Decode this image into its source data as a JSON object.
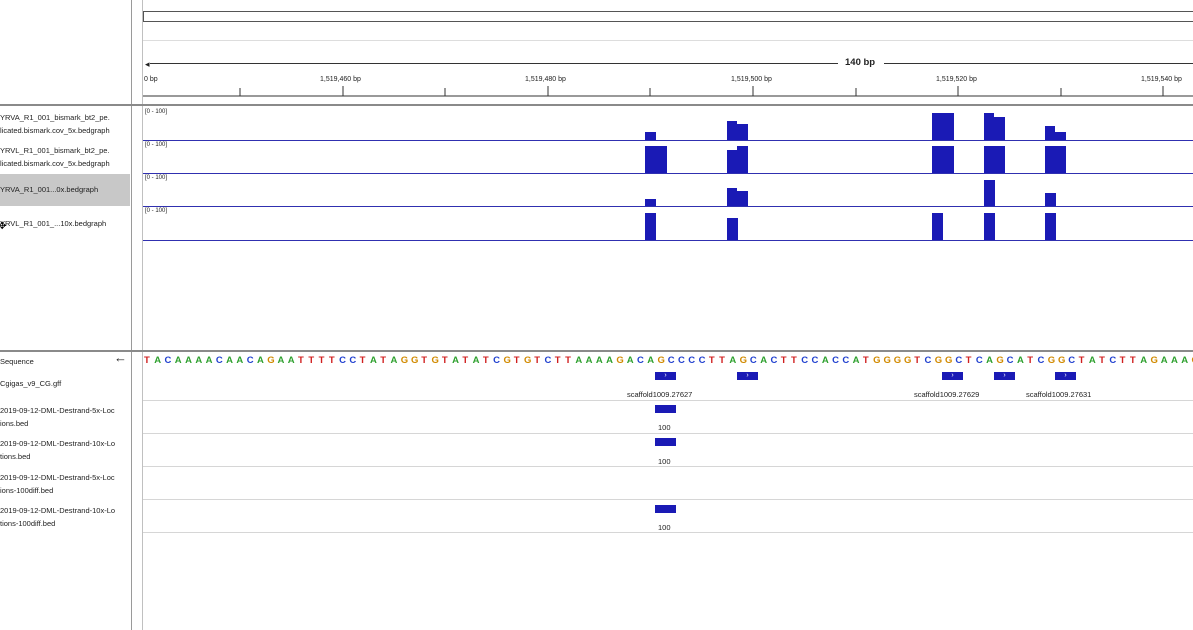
{
  "ruler": {
    "span": "140 bp",
    "ticks": [
      "0 bp",
      "1,519,460 bp",
      "1,519,480 bp",
      "1,519,500 bp",
      "1,519,520 bp",
      "1,519,540 bp"
    ]
  },
  "data_tracks": [
    {
      "name_line1": "YRVA_R1_001_bismark_bt2_pe.",
      "name_line2": "licated.bismark.cov_5x.bedgraph",
      "range": "[0 - 100]",
      "selected": false
    },
    {
      "name_line1": "YRVL_R1_001_bismark_bt2_pe.",
      "name_line2": "licated.bismark.cov_5x.bedgraph",
      "range": "[0 - 100]",
      "selected": false
    },
    {
      "name_line1": "YRVA_R1_001...0x.bedgraph",
      "name_line2": "",
      "range": "[0 - 100]",
      "selected": true
    },
    {
      "name_line1": "YRVL_R1_001_...10x.bedgraph",
      "name_line2": "",
      "range": "[0 - 100]",
      "selected": false
    }
  ],
  "bottom_tracks": {
    "sequence_label": "Sequence",
    "sequence_arrow": "←",
    "gff_label": "Cgigas_v9_CG.gff",
    "bed1_line1": "2019-09-12-DML-Destrand-5x-Loc",
    "bed1_line2": "ions.bed",
    "bed2_line1": "2019-09-12-DML-Destrand-10x-Lo",
    "bed2_line2": "tions.bed",
    "bed3_line1": "2019-09-12-DML-Destrand-5x-Loc",
    "bed3_line2": "ions-100diff.bed",
    "bed4_line1": "2019-09-12-DML-Destrand-10x-Lo",
    "bed4_line2": "tions-100diff.bed"
  },
  "sequence": "TACAAAACAACAGAATTTTCCTATAGGTGTATATCGTGTCTTAAAAGACAGCCCCTTAGCACTTCCACCATGGGGTCGGCTCAGCATCGGCTATCTTAGAAAG",
  "base_colors": {
    "A": "#2ea02e",
    "C": "#1f3fcf",
    "G": "#d18a00",
    "T": "#d01f1f"
  },
  "gff_features": [
    "scaffold1009.27627",
    "scaffold1009.27629",
    "scaffold1009.27631"
  ],
  "bed_values": [
    "100",
    "100",
    "100"
  ],
  "colors": {
    "bar": "#1a1ab5",
    "baseline": "#3030b0"
  }
}
